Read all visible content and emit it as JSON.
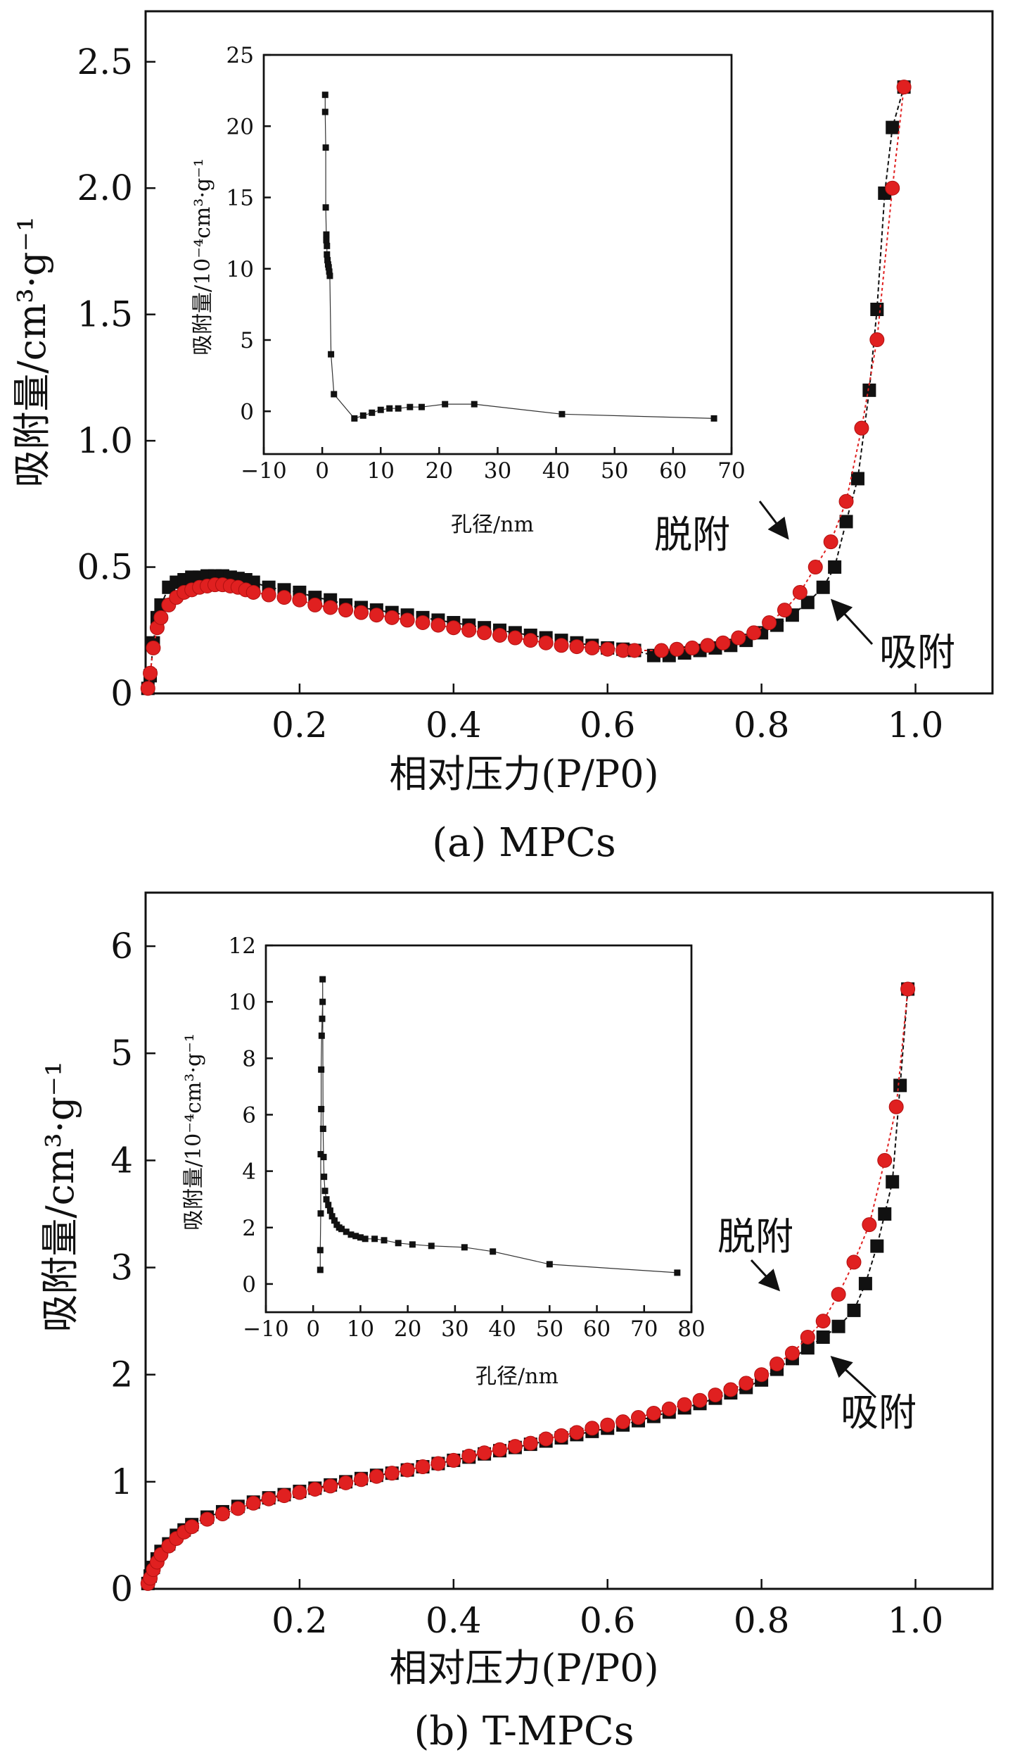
{
  "chart_data": [
    {
      "type": "scatter",
      "caption": "(a) MPCs",
      "xlabel": "相对压力(P/P0)",
      "ylabel": "吸附量/cm³·g⁻¹",
      "xlim": [
        0,
        1.1
      ],
      "ylim": [
        0,
        2.7
      ],
      "xticks": [
        "0.2",
        "0.4",
        "0.6",
        "0.8",
        "1.0"
      ],
      "yticks": [
        "0",
        "0.5",
        "1.0",
        "1.5",
        "2.0",
        "2.5"
      ],
      "annotations": {
        "desorption": "脱附",
        "adsorption": "吸附"
      },
      "colors": {
        "adsorption": "#111111",
        "desorption": "#e02020"
      },
      "series": [
        {
          "role": "adsorption",
          "marker": "square",
          "x": [
            0.003,
            0.006,
            0.01,
            0.015,
            0.02,
            0.03,
            0.04,
            0.05,
            0.06,
            0.07,
            0.08,
            0.09,
            0.1,
            0.11,
            0.12,
            0.13,
            0.14,
            0.16,
            0.18,
            0.2,
            0.22,
            0.24,
            0.26,
            0.28,
            0.3,
            0.32,
            0.34,
            0.36,
            0.38,
            0.4,
            0.42,
            0.44,
            0.46,
            0.48,
            0.5,
            0.52,
            0.54,
            0.56,
            0.58,
            0.6,
            0.62,
            0.635,
            0.66,
            0.68,
            0.7,
            0.72,
            0.74,
            0.76,
            0.78,
            0.8,
            0.82,
            0.84,
            0.86,
            0.88,
            0.895,
            0.91,
            0.925,
            0.94,
            0.95,
            0.96,
            0.97,
            0.985
          ],
          "y": [
            0.02,
            0.07,
            0.2,
            0.3,
            0.35,
            0.42,
            0.44,
            0.45,
            0.46,
            0.46,
            0.465,
            0.465,
            0.465,
            0.46,
            0.455,
            0.45,
            0.44,
            0.42,
            0.41,
            0.4,
            0.38,
            0.37,
            0.35,
            0.34,
            0.33,
            0.32,
            0.31,
            0.3,
            0.29,
            0.28,
            0.27,
            0.26,
            0.25,
            0.24,
            0.23,
            0.22,
            0.21,
            0.2,
            0.19,
            0.18,
            0.175,
            0.17,
            0.15,
            0.15,
            0.16,
            0.17,
            0.18,
            0.19,
            0.21,
            0.24,
            0.27,
            0.31,
            0.36,
            0.42,
            0.5,
            0.68,
            0.85,
            1.2,
            1.52,
            1.98,
            2.24,
            2.4
          ]
        },
        {
          "role": "desorption",
          "marker": "circle",
          "x": [
            0.003,
            0.006,
            0.01,
            0.015,
            0.02,
            0.03,
            0.04,
            0.05,
            0.06,
            0.07,
            0.08,
            0.09,
            0.1,
            0.11,
            0.12,
            0.13,
            0.14,
            0.16,
            0.18,
            0.2,
            0.22,
            0.24,
            0.26,
            0.28,
            0.3,
            0.32,
            0.34,
            0.36,
            0.38,
            0.4,
            0.42,
            0.44,
            0.46,
            0.48,
            0.5,
            0.52,
            0.54,
            0.56,
            0.58,
            0.6,
            0.62,
            0.635,
            0.67,
            0.69,
            0.71,
            0.73,
            0.75,
            0.77,
            0.79,
            0.81,
            0.83,
            0.85,
            0.87,
            0.89,
            0.91,
            0.93,
            0.95,
            0.97,
            0.985
          ],
          "y": [
            0.02,
            0.08,
            0.18,
            0.26,
            0.3,
            0.35,
            0.38,
            0.4,
            0.41,
            0.42,
            0.425,
            0.43,
            0.43,
            0.425,
            0.42,
            0.41,
            0.4,
            0.39,
            0.38,
            0.37,
            0.35,
            0.34,
            0.33,
            0.32,
            0.31,
            0.3,
            0.29,
            0.28,
            0.27,
            0.26,
            0.25,
            0.24,
            0.23,
            0.22,
            0.21,
            0.2,
            0.19,
            0.185,
            0.18,
            0.175,
            0.17,
            0.17,
            0.17,
            0.175,
            0.18,
            0.19,
            0.2,
            0.22,
            0.24,
            0.28,
            0.33,
            0.4,
            0.5,
            0.6,
            0.76,
            1.05,
            1.4,
            2.0,
            2.4
          ]
        }
      ],
      "inset": {
        "type": "scatter",
        "xlabel": "孔径/nm",
        "ylabel": "吸附量/10⁻⁴cm³·g⁻¹",
        "xlim": [
          -10,
          70
        ],
        "ylim": [
          -3,
          25
        ],
        "xticks": [
          "−10",
          "0",
          "10",
          "20",
          "30",
          "40",
          "50",
          "60",
          "70"
        ],
        "yticks": [
          "0",
          "5",
          "10",
          "15",
          "20",
          "25"
        ],
        "x": [
          0.5,
          0.5,
          0.6,
          0.6,
          0.7,
          0.7,
          0.8,
          0.8,
          0.9,
          1.0,
          1.1,
          1.2,
          1.3,
          1.5,
          2.0,
          5.5,
          7.0,
          8.5,
          10.0,
          11.5,
          13.0,
          15.0,
          17.0,
          21.0,
          26.0,
          41.0,
          67.0
        ],
        "y": [
          22.2,
          21.0,
          18.5,
          14.3,
          12.4,
          12.0,
          11.6,
          11.0,
          10.6,
          10.3,
          10.1,
          9.8,
          9.5,
          4.0,
          1.2,
          -0.5,
          -0.3,
          -0.1,
          0.1,
          0.2,
          0.2,
          0.3,
          0.3,
          0.5,
          0.5,
          -0.2,
          -0.5
        ]
      }
    },
    {
      "type": "scatter",
      "caption": "(b) T-MPCs",
      "xlabel": "相对压力(P/P0)",
      "ylabel": "吸附量/cm³·g⁻¹",
      "xlim": [
        0,
        1.1
      ],
      "ylim": [
        0,
        6.5
      ],
      "xticks": [
        "0.2",
        "0.4",
        "0.6",
        "0.8",
        "1.0"
      ],
      "yticks": [
        "0",
        "1",
        "2",
        "3",
        "4",
        "5",
        "6"
      ],
      "annotations": {
        "desorption": "脱附",
        "adsorption": "吸附"
      },
      "colors": {
        "adsorption": "#111111",
        "desorption": "#e02020"
      },
      "series": [
        {
          "role": "adsorption",
          "marker": "square",
          "x": [
            0.003,
            0.006,
            0.01,
            0.015,
            0.02,
            0.03,
            0.04,
            0.05,
            0.06,
            0.08,
            0.1,
            0.12,
            0.14,
            0.16,
            0.18,
            0.2,
            0.22,
            0.24,
            0.26,
            0.28,
            0.3,
            0.32,
            0.34,
            0.36,
            0.38,
            0.4,
            0.42,
            0.44,
            0.46,
            0.48,
            0.5,
            0.52,
            0.54,
            0.56,
            0.58,
            0.6,
            0.62,
            0.64,
            0.66,
            0.68,
            0.7,
            0.72,
            0.74,
            0.76,
            0.78,
            0.8,
            0.82,
            0.84,
            0.86,
            0.88,
            0.9,
            0.92,
            0.935,
            0.95,
            0.96,
            0.97,
            0.98,
            0.99
          ],
          "y": [
            0.05,
            0.12,
            0.2,
            0.28,
            0.35,
            0.42,
            0.5,
            0.55,
            0.6,
            0.67,
            0.72,
            0.77,
            0.81,
            0.85,
            0.88,
            0.91,
            0.94,
            0.97,
            1.0,
            1.03,
            1.06,
            1.08,
            1.11,
            1.14,
            1.17,
            1.2,
            1.23,
            1.26,
            1.29,
            1.32,
            1.35,
            1.38,
            1.41,
            1.44,
            1.47,
            1.5,
            1.53,
            1.57,
            1.61,
            1.65,
            1.69,
            1.73,
            1.78,
            1.83,
            1.88,
            1.95,
            2.05,
            2.15,
            2.25,
            2.35,
            2.45,
            2.6,
            2.85,
            3.2,
            3.5,
            3.8,
            4.7,
            5.6
          ]
        },
        {
          "role": "desorption",
          "marker": "circle",
          "x": [
            0.003,
            0.006,
            0.01,
            0.015,
            0.02,
            0.03,
            0.04,
            0.05,
            0.06,
            0.08,
            0.1,
            0.12,
            0.14,
            0.16,
            0.18,
            0.2,
            0.22,
            0.24,
            0.26,
            0.28,
            0.3,
            0.32,
            0.34,
            0.36,
            0.38,
            0.4,
            0.42,
            0.44,
            0.46,
            0.48,
            0.5,
            0.52,
            0.54,
            0.56,
            0.58,
            0.6,
            0.62,
            0.64,
            0.66,
            0.68,
            0.7,
            0.72,
            0.74,
            0.76,
            0.78,
            0.8,
            0.82,
            0.84,
            0.86,
            0.88,
            0.9,
            0.92,
            0.94,
            0.96,
            0.975,
            0.99
          ],
          "y": [
            0.05,
            0.1,
            0.18,
            0.25,
            0.32,
            0.4,
            0.47,
            0.53,
            0.58,
            0.65,
            0.7,
            0.75,
            0.8,
            0.84,
            0.87,
            0.9,
            0.93,
            0.96,
            0.99,
            1.02,
            1.05,
            1.08,
            1.11,
            1.14,
            1.17,
            1.2,
            1.24,
            1.27,
            1.3,
            1.33,
            1.36,
            1.4,
            1.43,
            1.46,
            1.5,
            1.53,
            1.56,
            1.6,
            1.64,
            1.68,
            1.72,
            1.76,
            1.81,
            1.86,
            1.92,
            2.0,
            2.1,
            2.2,
            2.35,
            2.5,
            2.75,
            3.05,
            3.4,
            4.0,
            4.5,
            5.6
          ]
        }
      ],
      "inset": {
        "type": "scatter",
        "xlabel": "孔径/nm",
        "ylabel": "吸附量/10⁻⁴cm³·g⁻¹",
        "xlim": [
          -10,
          80
        ],
        "ylim": [
          -1,
          12
        ],
        "xticks": [
          "−10",
          "0",
          "10",
          "20",
          "30",
          "40",
          "50",
          "60",
          "70",
          "80"
        ],
        "yticks": [
          "0",
          "2",
          "4",
          "6",
          "8",
          "10",
          "12"
        ],
        "x": [
          1.5,
          1.5,
          1.6,
          1.6,
          1.7,
          1.7,
          1.8,
          1.9,
          2.0,
          2.0,
          2.1,
          2.2,
          2.3,
          2.5,
          2.8,
          3.2,
          3.6,
          4.0,
          4.5,
          5.0,
          5.5,
          6.0,
          7.0,
          8.0,
          9.0,
          10.0,
          11.0,
          13.0,
          15.0,
          18.0,
          21.0,
          25.0,
          32.0,
          38.0,
          50.0,
          77.0
        ],
        "y": [
          0.5,
          1.2,
          2.5,
          4.6,
          6.2,
          7.6,
          8.8,
          9.4,
          10.0,
          10.8,
          5.5,
          4.5,
          3.8,
          3.3,
          3.0,
          2.8,
          2.6,
          2.4,
          2.25,
          2.1,
          2.0,
          1.95,
          1.85,
          1.75,
          1.7,
          1.65,
          1.6,
          1.6,
          1.55,
          1.45,
          1.4,
          1.35,
          1.3,
          1.15,
          0.7,
          0.4
        ]
      }
    }
  ]
}
